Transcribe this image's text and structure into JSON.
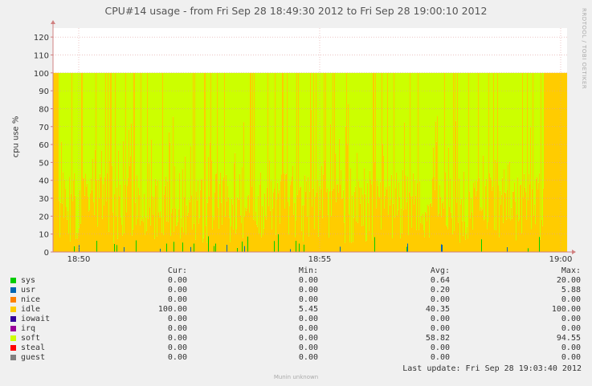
{
  "chart_data": {
    "type": "area",
    "title": "CPU#14 usage - from Fri Sep 28 18:49:30 2012 to Fri Sep 28 19:00:10 2012",
    "ylabel": "cpu use %",
    "side_label": "RRDTOOL / TOBI OETIKER",
    "ylim": [
      0,
      125
    ],
    "yticks": [
      0,
      10,
      20,
      30,
      40,
      50,
      60,
      70,
      80,
      90,
      100,
      110,
      120
    ],
    "xticks": [
      "18:50",
      "18:55",
      "19:00"
    ],
    "grid": true,
    "series": [
      {
        "name": "sys",
        "color": "#00cc00",
        "cur": "0.00",
        "min": "0.00",
        "avg": "0.64",
        "max": "20.00"
      },
      {
        "name": "usr",
        "color": "#0066b3",
        "cur": "0.00",
        "min": "0.00",
        "avg": "0.20",
        "max": "5.88"
      },
      {
        "name": "nice",
        "color": "#ff8000",
        "cur": "0.00",
        "min": "0.00",
        "avg": "0.00",
        "max": "0.00"
      },
      {
        "name": "idle",
        "color": "#ffcc00",
        "cur": "100.00",
        "min": "5.45",
        "avg": "40.35",
        "max": "100.00"
      },
      {
        "name": "iowait",
        "color": "#330099",
        "cur": "0.00",
        "min": "0.00",
        "avg": "0.00",
        "max": "0.00"
      },
      {
        "name": "irq",
        "color": "#990099",
        "cur": "0.00",
        "min": "0.00",
        "avg": "0.00",
        "max": "0.00"
      },
      {
        "name": "soft",
        "color": "#ccff00",
        "cur": "0.00",
        "min": "0.00",
        "avg": "58.82",
        "max": "94.55"
      },
      {
        "name": "steal",
        "color": "#ff0000",
        "cur": "0.00",
        "min": "0.00",
        "avg": "0.00",
        "max": "0.00"
      },
      {
        "name": "guest",
        "color": "#808080",
        "cur": "0.00",
        "min": "0.00",
        "avg": "0.00",
        "max": "0.00"
      }
    ]
  },
  "legend_headers": {
    "cur": "Cur:",
    "min": "Min:",
    "avg": "Avg:",
    "max": "Max:"
  },
  "last_update": "Last update:  Fri Sep 28 19:03:40 2012",
  "footer": "Munin unknown"
}
